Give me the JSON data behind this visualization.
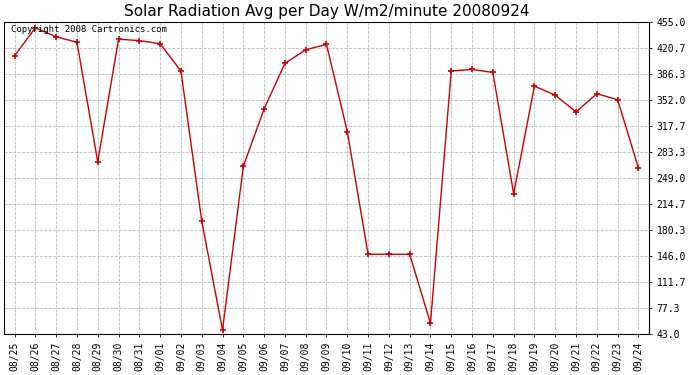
{
  "title": "Solar Radiation Avg per Day W/m2/minute 20080924",
  "copyright": "Copyright 2008 Cartronics.com",
  "dates": [
    "08/25",
    "08/26",
    "08/27",
    "08/28",
    "08/29",
    "08/30",
    "08/31",
    "09/01",
    "09/02",
    "09/03",
    "09/04",
    "09/05",
    "09/06",
    "09/07",
    "09/08",
    "09/09",
    "09/10",
    "09/11",
    "09/12",
    "09/13",
    "09/14",
    "09/15",
    "09/16",
    "09/17",
    "09/18",
    "09/19",
    "09/20",
    "09/21",
    "09/22",
    "09/23",
    "09/24"
  ],
  "values": [
    410,
    447,
    435,
    428,
    270,
    432,
    430,
    426,
    390,
    192,
    48,
    264,
    340,
    400,
    418,
    425,
    310,
    148,
    148,
    148,
    57,
    390,
    392,
    388,
    228,
    370,
    358,
    336,
    360,
    352,
    262
  ],
  "line_color": "#cc0000",
  "marker": "+",
  "marker_color": "#cc0000",
  "bg_color": "#ffffff",
  "grid_color": "#bbbbbb",
  "yticks": [
    43.0,
    77.3,
    111.7,
    146.0,
    180.3,
    214.7,
    249.0,
    283.3,
    317.7,
    352.0,
    386.3,
    420.7,
    455.0
  ],
  "ymin": 43.0,
  "ymax": 455.0,
  "title_fontsize": 11,
  "copyright_fontsize": 6.5,
  "tick_fontsize": 7,
  "linewidth": 1.0,
  "markersize": 4
}
